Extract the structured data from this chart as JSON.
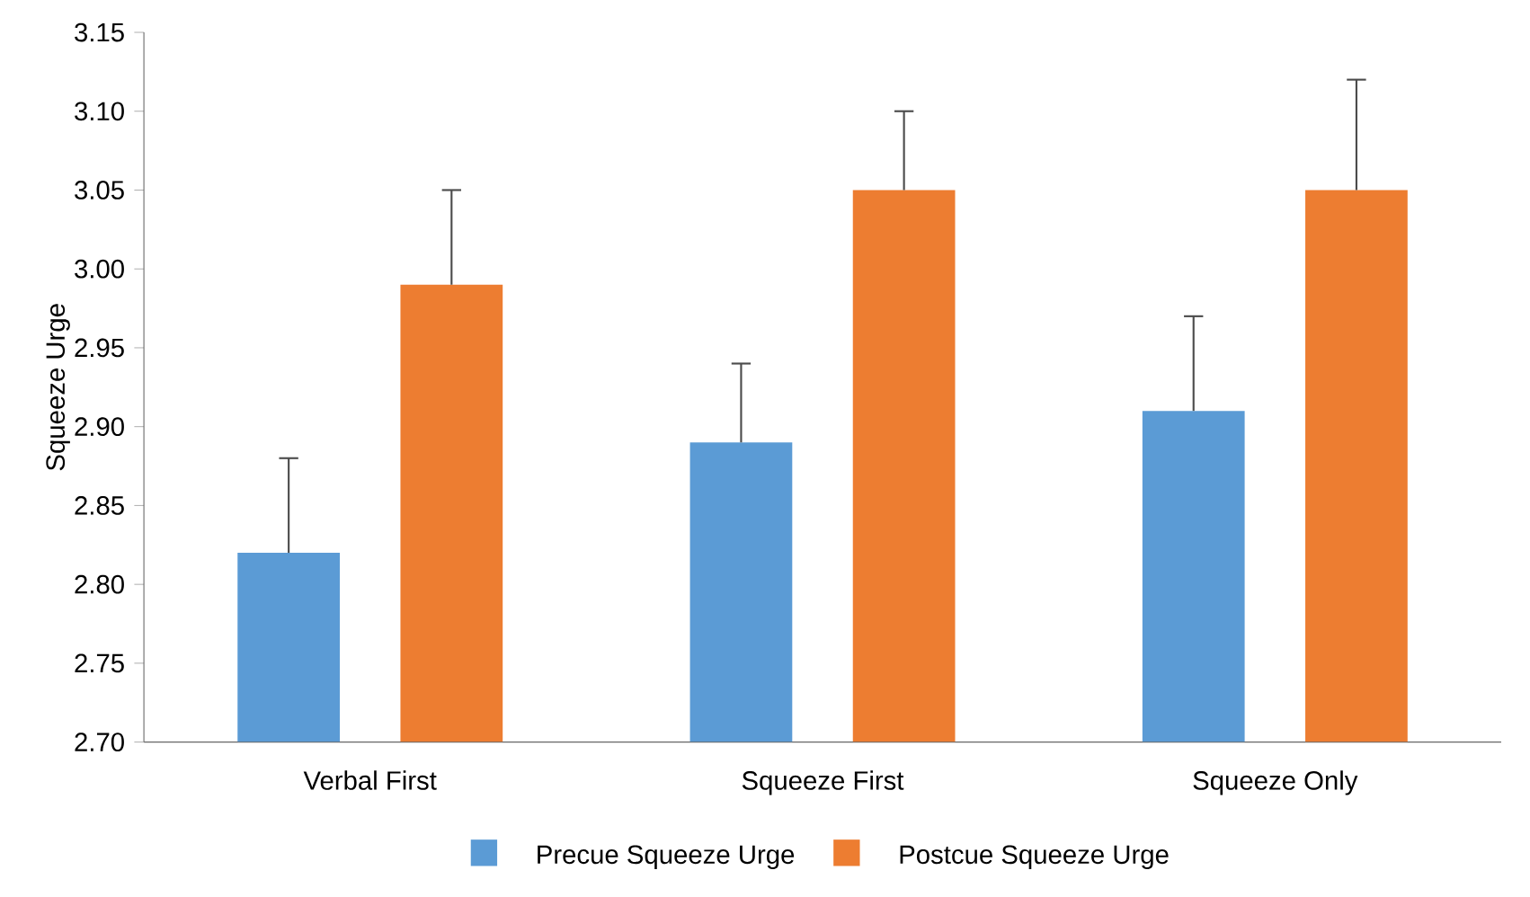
{
  "chart_data": {
    "type": "bar",
    "ylabel": "Squeeze Urge",
    "categories": [
      "Verbal First",
      "Squeeze First",
      "Squeeze Only"
    ],
    "series": [
      {
        "name": "Precue Squeeze Urge",
        "color": "#5b9bd5",
        "values": [
          2.82,
          2.89,
          2.91
        ],
        "errors": [
          [
            2.82,
            2.88
          ],
          [
            2.89,
            2.94
          ],
          [
            2.91,
            2.97
          ]
        ]
      },
      {
        "name": "Postcue Squeeze Urge",
        "color": "#ed7d31",
        "values": [
          2.99,
          3.05,
          3.05
        ],
        "errors": [
          [
            2.99,
            3.05
          ],
          [
            3.05,
            3.1
          ],
          [
            3.05,
            3.12
          ]
        ]
      }
    ],
    "ylim": [
      2.7,
      3.15
    ],
    "yticks": [
      {
        "value": 2.7,
        "label": "2.70"
      },
      {
        "value": 2.75,
        "label": "2.75"
      },
      {
        "value": 2.8,
        "label": "2.80"
      },
      {
        "value": 2.85,
        "label": "2.85"
      },
      {
        "value": 2.9,
        "label": "2.90"
      },
      {
        "value": 2.95,
        "label": "2.95"
      },
      {
        "value": 3.0,
        "label": "3.00"
      },
      {
        "value": 3.05,
        "label": "3.05"
      },
      {
        "value": 3.1,
        "label": "3.10"
      },
      {
        "value": 3.15,
        "label": "3.15"
      }
    ],
    "grid": false,
    "legend": "bottom"
  }
}
